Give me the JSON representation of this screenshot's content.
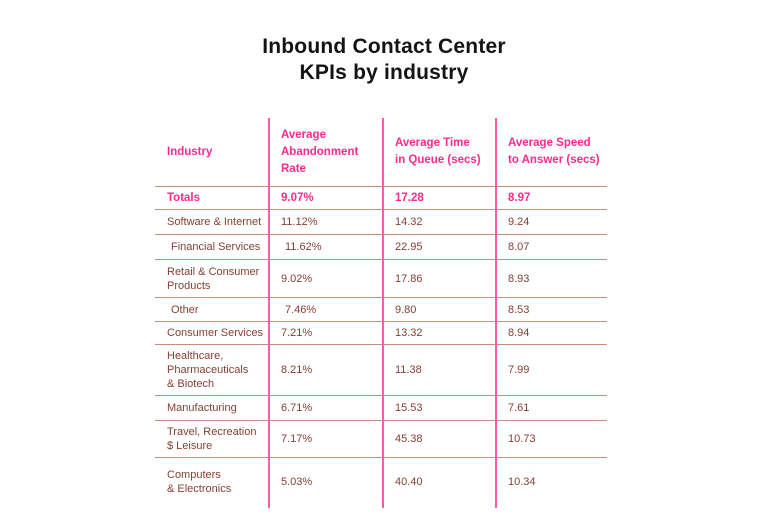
{
  "page": {
    "title_line1": "Inbound Contact Center",
    "title_line2": "KPIs by industry"
  },
  "colors": {
    "accent_pink_text": "#f92b8c",
    "column_divider_pink": "#ff5aa8",
    "row_rule_tan": "#c28e7a",
    "body_text_brown": "#843f33",
    "title_black": "#141414",
    "background": "#ffffff"
  },
  "table": {
    "columns": [
      {
        "label": "Industry"
      },
      {
        "label": "Average\nAbandonment\nRate"
      },
      {
        "label": "Average Time\nin Queue (secs)"
      },
      {
        "label": "Average Speed\nto Answer (secs)"
      }
    ],
    "totals": {
      "industry": "Totals",
      "abandonment_rate": "9.07%",
      "time_in_queue": "17.28",
      "speed_to_answer": "8.97"
    },
    "rows": [
      {
        "industry": "Software & Internet",
        "abandonment_rate": "11.12%",
        "time_in_queue": "14.32",
        "speed_to_answer": "9.24"
      },
      {
        "industry": "Financial Services",
        "abandonment_rate": "11.62%",
        "time_in_queue": "22.95",
        "speed_to_answer": "8.07"
      },
      {
        "industry": "Retail & Consumer\nProducts",
        "abandonment_rate": "9.02%",
        "time_in_queue": "17.86",
        "speed_to_answer": "8.93"
      },
      {
        "industry": "Other",
        "abandonment_rate": "7.46%",
        "time_in_queue": "9.80",
        "speed_to_answer": "8.53"
      },
      {
        "industry": "Consumer Services",
        "abandonment_rate": "7.21%",
        "time_in_queue": "13.32",
        "speed_to_answer": "8.94"
      },
      {
        "industry": "Healthcare,\nPharmaceuticals\n& Biotech",
        "abandonment_rate": "8.21%",
        "time_in_queue": "11.38",
        "speed_to_answer": "7.99"
      },
      {
        "industry": "Manufacturing",
        "abandonment_rate": "6.71%",
        "time_in_queue": "15.53",
        "speed_to_answer": "7.61"
      },
      {
        "industry": "Travel, Recreation\n$ Leisure",
        "abandonment_rate": "7.17%",
        "time_in_queue": "45.38",
        "speed_to_answer": "10.73"
      },
      {
        "industry": "Computers\n& Electronics",
        "abandonment_rate": "5.03%",
        "time_in_queue": "40.40",
        "speed_to_answer": "10.34"
      }
    ]
  },
  "chart_data": {
    "type": "table",
    "title": "Inbound Contact Center KPIs by industry",
    "columns": [
      "Industry",
      "Average Abandonment Rate",
      "Average Time in Queue (secs)",
      "Average Speed to Answer (secs)"
    ],
    "rows": [
      [
        "Totals",
        "9.07%",
        17.28,
        8.97
      ],
      [
        "Software & Internet",
        "11.12%",
        14.32,
        9.24
      ],
      [
        "Financial Services",
        "11.62%",
        22.95,
        8.07
      ],
      [
        "Retail & Consumer Products",
        "9.02%",
        17.86,
        8.93
      ],
      [
        "Other",
        "7.46%",
        9.8,
        8.53
      ],
      [
        "Consumer Services",
        "7.21%",
        13.32,
        8.94
      ],
      [
        "Healthcare, Pharmaceuticals & Biotech",
        "8.21%",
        11.38,
        7.99
      ],
      [
        "Manufacturing",
        "6.71%",
        15.53,
        7.61
      ],
      [
        "Travel, Recreation $ Leisure",
        "7.17%",
        45.38,
        10.73
      ],
      [
        "Computers & Electronics",
        "5.03%",
        40.4,
        10.34
      ]
    ]
  }
}
